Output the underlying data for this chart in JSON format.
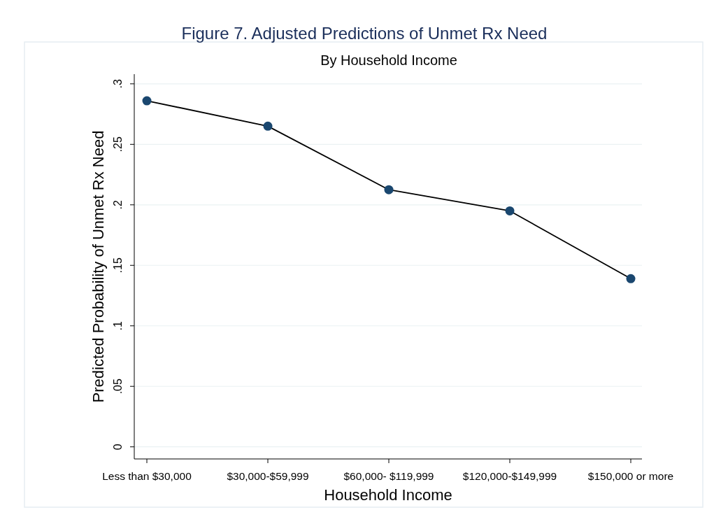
{
  "chart_data": {
    "type": "line",
    "title": "Figure 7. Adjusted Predictions of Unmet Rx Need",
    "subtitle": "By Household Income",
    "xlabel": "Household Income",
    "ylabel": "Predicted Probability of Unmet Rx Need",
    "categories": [
      "Less than $30,000",
      "$30,000-$59,999",
      "$60,000- $119,999",
      "$120,000-$149,999",
      "$150,000 or more"
    ],
    "series": [
      {
        "color": "#1a476f",
        "values": [
          0.286,
          0.265,
          0.2125,
          0.195,
          0.139
        ]
      }
    ],
    "ylim": [
      -0.01,
      0.308
    ],
    "yticks": [
      {
        "value": 0,
        "label": "0"
      },
      {
        "value": 0.05,
        "label": ".05"
      },
      {
        "value": 0.1,
        "label": ".1"
      },
      {
        "value": 0.15,
        "label": ".15"
      },
      {
        "value": 0.2,
        "label": ".2"
      },
      {
        "value": 0.25,
        "label": ".25"
      },
      {
        "value": 0.3,
        "label": ".3"
      }
    ],
    "grid": "y",
    "marker": "circle",
    "line_style": "solid"
  }
}
